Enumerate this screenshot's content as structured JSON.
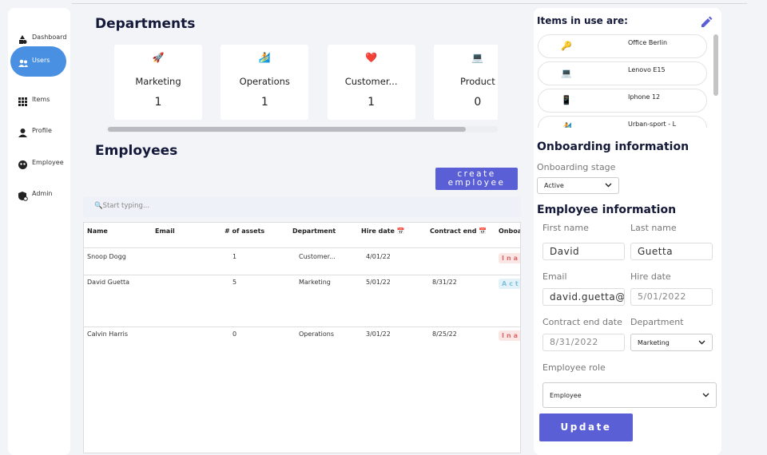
{
  "sidebar": {
    "items": [
      "Dashboard",
      "Users",
      "Items",
      "Profile",
      "Employee",
      "Admin"
    ],
    "active": 1
  },
  "departments": {
    "title": "Departments",
    "cards": [
      {
        "icon": "🚀",
        "name": "Marketing",
        "count": 1
      },
      {
        "icon": "🏄",
        "name": "Operations",
        "count": 1
      },
      {
        "icon": "❤️",
        "name": "Customer...",
        "count": 1
      },
      {
        "icon": "💻",
        "name": "Product",
        "count": 0
      }
    ]
  },
  "employees": {
    "title": "Employees",
    "create_button": "create employee",
    "search_placeholder": "🔍Start typing...",
    "columns": [
      "Name",
      "Email",
      "# of assets",
      "Department",
      "Hire date 📅",
      "Contract end 📅",
      "Onboar"
    ],
    "rows": [
      {
        "name": "Snoop Dogg",
        "assets": 1,
        "department": "Customer...",
        "hire_date": "4/01/22",
        "status": "Inac"
      },
      {
        "name": "David Guetta",
        "assets": 5,
        "department": "Marketing",
        "hire_date": "5/01/22",
        "contract_end": "8/31/22",
        "status": "Acti"
      },
      {
        "name": "Calvin Harris",
        "assets": 0,
        "department": "Operations",
        "hire_date": "3/01/22",
        "contract_end": "8/25/22",
        "status": "Inac"
      }
    ]
  },
  "items_panel": {
    "title": "Items in use are:",
    "items": [
      {
        "icon": "🔑",
        "name": "Office Berlin"
      },
      {
        "icon": "💻",
        "name": "Lenovo E15"
      },
      {
        "icon": "📱",
        "name": "Iphone 12"
      },
      {
        "icon": "🏄",
        "name": "Urban-sport - L"
      }
    ]
  },
  "onboarding": {
    "title": "Onboarding information",
    "stage_label": "Onboarding stage",
    "stage": "Active"
  },
  "employee_info": {
    "title": "Employee information",
    "first_name_label": "First name",
    "first_name": "David",
    "last_name_label": "Last name",
    "last_name": "Guetta",
    "email_label": "Email",
    "email": "david.guetta@o",
    "hire_date_label": "Hire date",
    "hire_date": "5/01/2022",
    "contract_end_label": "Contract end date",
    "contract_end": "8/31/2022",
    "department_label": "Department",
    "department": "Marketing",
    "role_label": "Employee role",
    "role": "Employee",
    "update_button": "Update"
  }
}
